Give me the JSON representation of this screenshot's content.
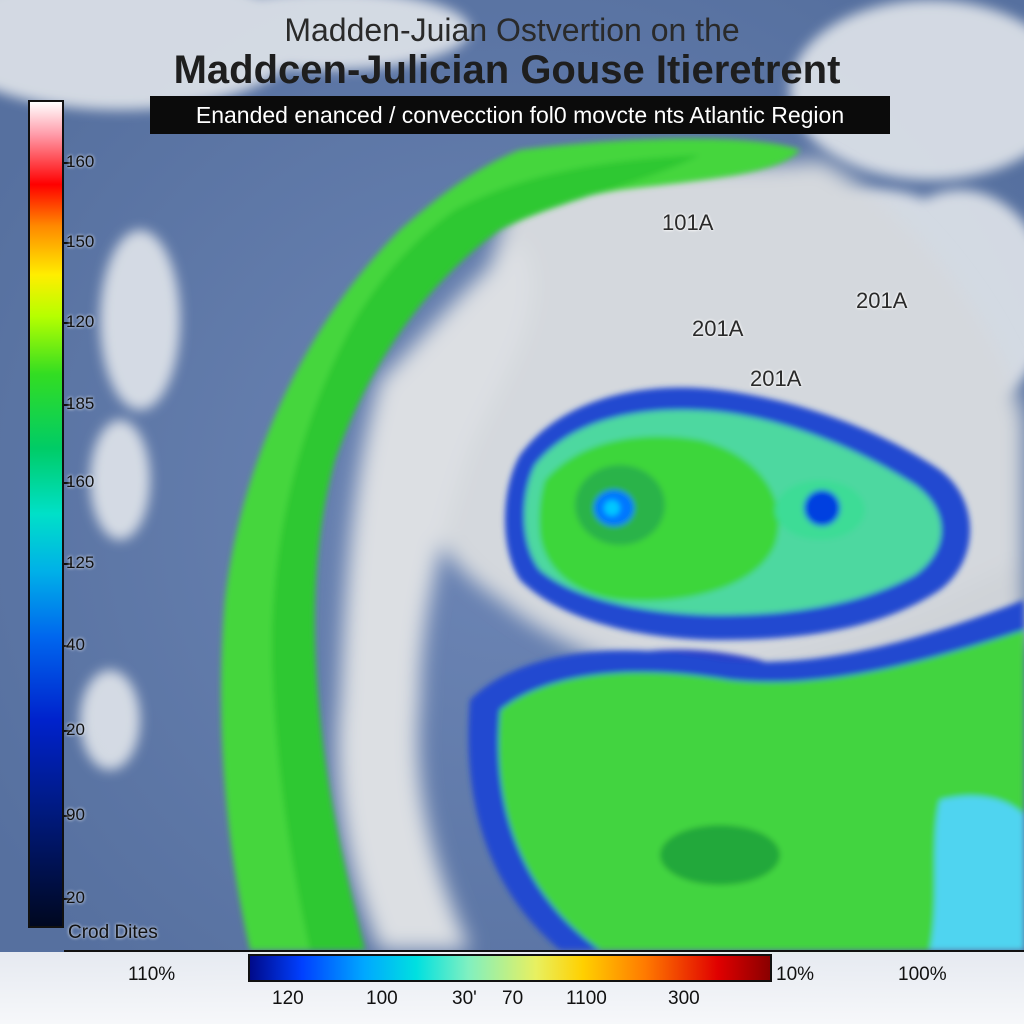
{
  "title_line1": "Madden-Juian Ostvertion on the",
  "title_line2": "Maddcen-Julician Gouse Itieretrent",
  "subtitle": "Enanded enanced / convecction fol0 movcte nts Atlantic Region",
  "map_labels": [
    "101A",
    "201A",
    "201A",
    "201A"
  ],
  "left_colorbar": {
    "ticks": [
      "160",
      "150",
      "120",
      "185",
      "160",
      "125",
      "40",
      "20",
      "90",
      "20"
    ],
    "footer_label": "Crod Dites"
  },
  "bottom_axis": {
    "left_label": "110%",
    "right_labels": [
      "10%",
      "100%"
    ]
  },
  "bottom_colorbar": {
    "ticks": [
      "120",
      "100",
      "30'",
      "70",
      "1100",
      "300"
    ]
  },
  "colors": {
    "ocean": "#5f79a9",
    "convection_green": "#3ed63a",
    "enhanced_blue": "#2448d0",
    "cloud_white": "#e9ecef"
  }
}
